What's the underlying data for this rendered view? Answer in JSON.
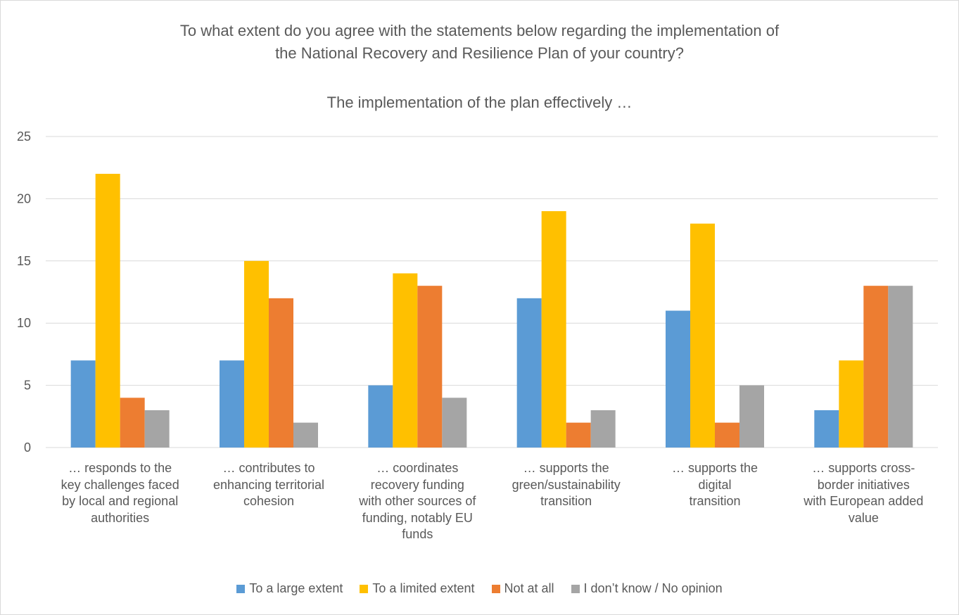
{
  "chart_data": {
    "type": "bar",
    "title_lines": [
      "To what extent do you agree with the statements below regarding the implementation of",
      "the National Recovery and Resilience Plan of your country?"
    ],
    "subtitle": "The implementation of the plan effectively …",
    "categories": [
      [
        "… responds to the",
        "key challenges faced",
        "by local and regional",
        "authorities"
      ],
      [
        "… contributes to",
        "enhancing territorial",
        "cohesion"
      ],
      [
        "… coordinates",
        "recovery funding",
        "with other sources of",
        "funding, notably EU",
        "funds"
      ],
      [
        "… supports the",
        "green/sustainability",
        "transition"
      ],
      [
        "… supports the digital",
        "transition"
      ],
      [
        "… supports cross-",
        "border initiatives",
        "with European added",
        "value"
      ]
    ],
    "series": [
      {
        "name": "To a large extent",
        "color": "#5b9bd5",
        "values": [
          7,
          7,
          5,
          12,
          11,
          3
        ]
      },
      {
        "name": "To a limited extent",
        "color": "#ffc000",
        "values": [
          22,
          15,
          14,
          19,
          18,
          7
        ]
      },
      {
        "name": "Not at all",
        "color": "#ed7d31",
        "values": [
          4,
          12,
          13,
          2,
          2,
          13
        ]
      },
      {
        "name": "I don’t know / No opinion",
        "color": "#a5a5a5",
        "values": [
          3,
          2,
          4,
          3,
          5,
          13
        ]
      }
    ],
    "ylim": [
      0,
      25
    ],
    "yticks": [
      0,
      5,
      10,
      15,
      20,
      25
    ],
    "grid": true,
    "legend_position": "bottom"
  }
}
